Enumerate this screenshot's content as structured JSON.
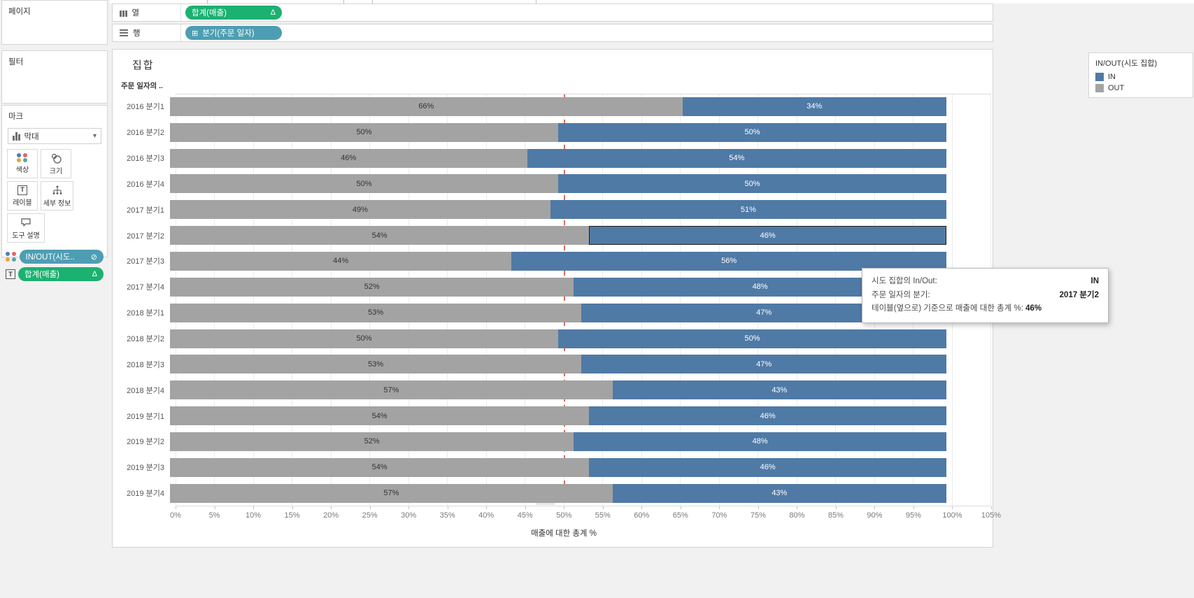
{
  "shelves": {
    "pages_label": "페이지",
    "filters_label": "필터",
    "marks_label": "마크",
    "columns_label": "열",
    "rows_label": "행",
    "columns_pill": "합계(매출)",
    "rows_pill": "분기(주문 일자)",
    "mark_type": "막대",
    "marks_buttons": [
      "색상",
      "크기",
      "레이블",
      "세부 정보",
      "도구 설명"
    ],
    "marks_pills": [
      {
        "label": "IN/OUT(시도..",
        "right_icon": "set-icon"
      },
      {
        "label": "합계(매출)",
        "right_icon": "delta-icon"
      }
    ],
    "colors": {
      "measure_pill": "#1bb171",
      "dimension_pill": "#4d9eb3"
    },
    "glyphs": {
      "delta": "Δ",
      "expand": "⊞",
      "set": "⊘",
      "caret": "▾"
    }
  },
  "legend": {
    "title": "IN/OUT(시도 집합)",
    "items": [
      {
        "label": "IN",
        "color": "#4f7aa6"
      },
      {
        "label": "OUT",
        "color": "#a3a3a3"
      }
    ]
  },
  "tooltip": {
    "rows": [
      {
        "label": "시도 집합의 In/Out:",
        "value": "IN"
      },
      {
        "label": "주문 일자의 분기:",
        "value": "2017 분기2"
      }
    ],
    "inline_row": {
      "label": "테이블(옆으로) 기준으로 매출에 대한 총계 %:",
      "value": "46%"
    }
  },
  "chart_data": {
    "type": "bar",
    "orientation": "horizontal-stacked",
    "title": "집합",
    "row_header": "주문 일자의 ..",
    "xlabel": "매출에 대한 총계 %",
    "xlim": [
      0,
      105
    ],
    "grid": true,
    "ticks": [
      "0%",
      "5%",
      "10%",
      "15%",
      "20%",
      "25%",
      "30%",
      "35%",
      "40%",
      "45%",
      "50%",
      "55%",
      "60%",
      "65%",
      "70%",
      "75%",
      "80%",
      "85%",
      "90%",
      "95%",
      "100%",
      "105%"
    ],
    "categories": [
      "2016 분기1",
      "2016 분기2",
      "2016 분기3",
      "2016 분기4",
      "2017 분기1",
      "2017 분기2",
      "2017 분기3",
      "2017 분기4",
      "2018 분기1",
      "2018 분기2",
      "2018 분기3",
      "2018 분기4",
      "2019 분기1",
      "2019 분기2",
      "2019 분기3",
      "2019 분기4"
    ],
    "series": [
      {
        "name": "OUT",
        "color": "#a3a3a3",
        "values": [
          66,
          50,
          46,
          50,
          49,
          54,
          44,
          52,
          53,
          50,
          53,
          57,
          54,
          52,
          54,
          57
        ]
      },
      {
        "name": "IN",
        "color": "#4f7aa6",
        "values": [
          34,
          50,
          54,
          50,
          51,
          46,
          56,
          48,
          47,
          50,
          47,
          43,
          46,
          48,
          46,
          43
        ]
      }
    ],
    "reference_line": {
      "value": 50,
      "label": "50%",
      "color": "#d96a5f"
    },
    "selected": {
      "category": "2017 분기2",
      "series": "IN"
    },
    "legend_position": "top-right"
  }
}
